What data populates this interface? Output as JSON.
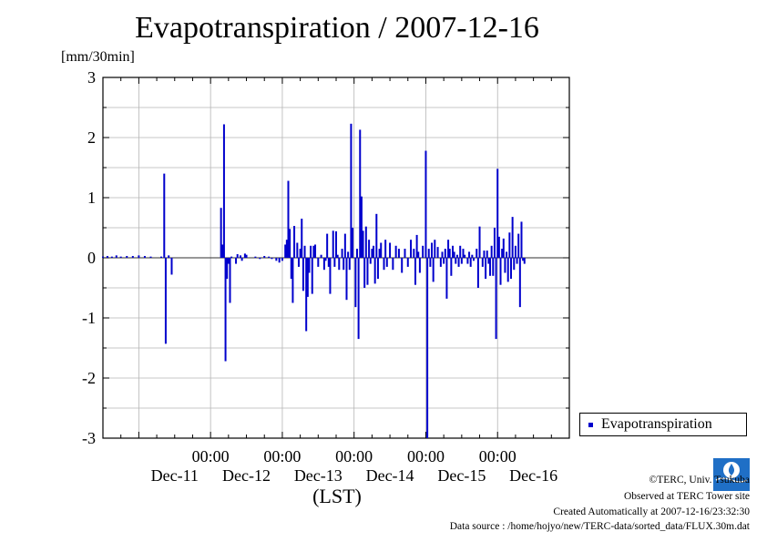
{
  "title": "Evapotranspiration / 2007-12-16",
  "unit_label": "[mm/30min]",
  "xlabel": "(LST)",
  "legend": {
    "label": "Evapotranspiration",
    "position": "right, below plot",
    "color": "#0000cc"
  },
  "credits": {
    "copyright": "©TERC, Univ. Tsukuba",
    "observed": "Observed at TERC Tower site",
    "created": "Created Automatically at 2007-12-16/23:32:30",
    "source": "Data source : /home/hojyo/new/TERC-data/sorted_data/FLUX.30m.dat"
  },
  "logo": {
    "icon": "terc-logo-icon",
    "text": "TERC"
  },
  "chart_data": {
    "type": "bar",
    "ylim": [
      -3,
      3
    ],
    "yticks": [
      "3",
      "2",
      "1",
      "0",
      "-1",
      "-2",
      "-3"
    ],
    "xlim_days": [
      "Dec-10 12:00",
      "Dec-16 24:00"
    ],
    "x_time_ticks": [
      "00:00",
      "00:00",
      "00:00",
      "00:00",
      "00:00"
    ],
    "x_day_labels": [
      "Dec-11",
      "Dec-12",
      "Dec-13",
      "Dec-14",
      "Dec-15",
      "Dec-16"
    ],
    "grid": true,
    "series": [
      {
        "name": "Evapotranspiration",
        "color": "#0000cc",
        "points": [
          [
            "12-10 12:00",
            0.02
          ],
          [
            "12-10 13:30",
            0.03
          ],
          [
            "12-10 15:00",
            0.02
          ],
          [
            "12-10 16:30",
            0.04
          ],
          [
            "12-10 18:00",
            0.02
          ],
          [
            "12-10 20:00",
            0.03
          ],
          [
            "12-10 22:00",
            0.03
          ],
          [
            "12-11 00:00",
            0.04
          ],
          [
            "12-11 02:00",
            0.03
          ],
          [
            "12-11 04:00",
            0.02
          ],
          [
            "12-11 07:30",
            0.02
          ],
          [
            "12-11 08:30",
            1.4
          ],
          [
            "12-11 09:00",
            -1.43
          ],
          [
            "12-11 10:00",
            0.04
          ],
          [
            "12-11 11:00",
            -0.28
          ],
          [
            "12-12 03:30",
            0.83
          ],
          [
            "12-12 04:00",
            0.22
          ],
          [
            "12-12 04:30",
            2.22
          ],
          [
            "12-12 05:00",
            -1.72
          ],
          [
            "12-12 05:30",
            -0.35
          ],
          [
            "12-12 06:00",
            -0.1
          ],
          [
            "12-12 06:30",
            -0.75
          ],
          [
            "12-12 07:00",
            0.02
          ],
          [
            "12-12 08:30",
            -0.1
          ],
          [
            "12-12 09:00",
            0.06
          ],
          [
            "12-12 10:00",
            0.04
          ],
          [
            "12-12 10:30",
            -0.05
          ],
          [
            "12-12 11:30",
            0.07
          ],
          [
            "12-12 12:00",
            0.05
          ],
          [
            "12-12 15:00",
            0.02
          ],
          [
            "12-12 16:30",
            -0.02
          ],
          [
            "12-12 18:00",
            0.03
          ],
          [
            "12-12 19:30",
            0.02
          ],
          [
            "12-12 20:30",
            -0.02
          ],
          [
            "12-12 22:00",
            -0.05
          ],
          [
            "12-12 23:00",
            -0.08
          ],
          [
            "12-13 00:00",
            -0.05
          ],
          [
            "12-13 01:00",
            0.22
          ],
          [
            "12-13 01:30",
            0.3
          ],
          [
            "12-13 02:00",
            1.28
          ],
          [
            "12-13 02:30",
            0.48
          ],
          [
            "12-13 03:00",
            -0.35
          ],
          [
            "12-13 03:30",
            -0.75
          ],
          [
            "12-13 04:00",
            0.53
          ],
          [
            "12-13 05:00",
            0.25
          ],
          [
            "12-13 05:30",
            -0.15
          ],
          [
            "12-13 06:00",
            0.15
          ],
          [
            "12-13 06:30",
            0.65
          ],
          [
            "12-13 07:00",
            -0.55
          ],
          [
            "12-13 07:30",
            0.2
          ],
          [
            "12-13 08:00",
            -1.22
          ],
          [
            "12-13 08:30",
            -0.65
          ],
          [
            "12-13 09:00",
            -0.25
          ],
          [
            "12-13 09:30",
            0.2
          ],
          [
            "12-13 10:00",
            -0.6
          ],
          [
            "12-13 10:30",
            0.2
          ],
          [
            "12-13 11:00",
            0.22
          ],
          [
            "12-13 12:00",
            -0.15
          ],
          [
            "12-13 13:00",
            0.05
          ],
          [
            "12-13 14:00",
            -0.2
          ],
          [
            "12-13 14:30",
            -0.05
          ],
          [
            "12-13 15:00",
            0.4
          ],
          [
            "12-13 15:30",
            -0.15
          ],
          [
            "12-13 16:00",
            -0.6
          ],
          [
            "12-13 17:00",
            0.45
          ],
          [
            "12-13 17:30",
            -0.15
          ],
          [
            "12-13 18:00",
            0.44
          ],
          [
            "12-13 18:30",
            0.05
          ],
          [
            "12-13 19:00",
            -0.2
          ],
          [
            "12-13 20:00",
            0.15
          ],
          [
            "12-13 20:30",
            -0.2
          ],
          [
            "12-13 21:00",
            0.4
          ],
          [
            "12-13 21:30",
            -0.7
          ],
          [
            "12-13 22:00",
            0.1
          ],
          [
            "12-13 22:30",
            -0.2
          ],
          [
            "12-13 23:00",
            2.23
          ],
          [
            "12-13 23:30",
            0.5
          ],
          [
            "12-14 00:30",
            -0.82
          ],
          [
            "12-14 01:00",
            0.15
          ],
          [
            "12-14 01:30",
            -1.35
          ],
          [
            "12-14 02:00",
            2.13
          ],
          [
            "12-14 02:30",
            1.02
          ],
          [
            "12-14 03:00",
            0.45
          ],
          [
            "12-14 03:30",
            -0.5
          ],
          [
            "12-14 04:00",
            0.52
          ],
          [
            "12-14 04:30",
            -0.45
          ],
          [
            "12-14 05:00",
            0.3
          ],
          [
            "12-14 05:30",
            -0.1
          ],
          [
            "12-14 06:00",
            0.15
          ],
          [
            "12-14 06:30",
            0.2
          ],
          [
            "12-14 07:00",
            -0.43
          ],
          [
            "12-14 07:30",
            0.73
          ],
          [
            "12-14 08:00",
            -0.35
          ],
          [
            "12-14 08:30",
            0.15
          ],
          [
            "12-14 09:00",
            0.25
          ],
          [
            "12-14 10:00",
            -0.2
          ],
          [
            "12-14 10:30",
            0.3
          ],
          [
            "12-14 11:00",
            -0.15
          ],
          [
            "12-14 12:00",
            0.25
          ],
          [
            "12-14 13:00",
            -0.2
          ],
          [
            "12-14 14:00",
            0.2
          ],
          [
            "12-14 15:00",
            0.15
          ],
          [
            "12-14 16:00",
            -0.25
          ],
          [
            "12-14 17:00",
            0.15
          ],
          [
            "12-14 18:00",
            -0.15
          ],
          [
            "12-14 19:00",
            0.3
          ],
          [
            "12-14 20:00",
            0.15
          ],
          [
            "12-14 20:30",
            -0.45
          ],
          [
            "12-14 21:00",
            0.38
          ],
          [
            "12-14 21:30",
            0.1
          ],
          [
            "12-14 22:00",
            -0.25
          ],
          [
            "12-14 23:00",
            0.2
          ],
          [
            "12-15 00:00",
            1.78
          ],
          [
            "12-15 00:30",
            -3.0
          ],
          [
            "12-15 01:00",
            0.15
          ],
          [
            "12-15 01:30",
            -0.15
          ],
          [
            "12-15 02:00",
            0.25
          ],
          [
            "12-15 02:30",
            -0.4
          ],
          [
            "12-15 03:00",
            0.3
          ],
          [
            "12-15 04:00",
            0.18
          ],
          [
            "12-15 05:00",
            -0.15
          ],
          [
            "12-15 05:30",
            0.1
          ],
          [
            "12-15 06:00",
            -0.1
          ],
          [
            "12-15 06:30",
            0.15
          ],
          [
            "12-15 07:00",
            -0.68
          ],
          [
            "12-15 07:30",
            0.3
          ],
          [
            "12-15 08:00",
            0.15
          ],
          [
            "12-15 08:30",
            -0.3
          ],
          [
            "12-15 09:00",
            0.2
          ],
          [
            "12-15 09:30",
            0.1
          ],
          [
            "12-15 10:00",
            -0.1
          ],
          [
            "12-15 10:30",
            0.05
          ],
          [
            "12-15 11:00",
            -0.15
          ],
          [
            "12-15 11:30",
            0.2
          ],
          [
            "12-15 12:00",
            -0.1
          ],
          [
            "12-15 12:30",
            0.15
          ],
          [
            "12-15 13:00",
            0.05
          ],
          [
            "12-15 14:00",
            -0.1
          ],
          [
            "12-15 14:30",
            0.1
          ],
          [
            "12-15 15:00",
            -0.15
          ],
          [
            "12-15 15:30",
            0.05
          ],
          [
            "12-15 16:00",
            -0.05
          ],
          [
            "12-15 17:00",
            0.15
          ],
          [
            "12-15 17:30",
            -0.5
          ],
          [
            "12-15 18:00",
            0.52
          ],
          [
            "12-15 19:00",
            -0.15
          ],
          [
            "12-15 19:30",
            0.12
          ],
          [
            "12-15 20:00",
            -0.35
          ],
          [
            "12-15 20:30",
            0.12
          ],
          [
            "12-15 21:00",
            -0.1
          ],
          [
            "12-15 21:30",
            -0.3
          ],
          [
            "12-15 22:00",
            0.2
          ],
          [
            "12-15 22:30",
            -0.3
          ],
          [
            "12-15 23:00",
            0.5
          ],
          [
            "12-15 23:30",
            -1.35
          ],
          [
            "12-16 00:00",
            1.48
          ],
          [
            "12-16 00:30",
            0.35
          ],
          [
            "12-16 01:00",
            -0.45
          ],
          [
            "12-16 01:30",
            0.15
          ],
          [
            "12-16 02:00",
            0.32
          ],
          [
            "12-16 02:30",
            -0.25
          ],
          [
            "12-16 03:00",
            0.1
          ],
          [
            "12-16 03:30",
            -0.4
          ],
          [
            "12-16 04:00",
            0.42
          ],
          [
            "12-16 04:30",
            -0.35
          ],
          [
            "12-16 05:00",
            0.68
          ],
          [
            "12-16 05:30",
            -0.2
          ],
          [
            "12-16 06:00",
            0.2
          ],
          [
            "12-16 06:30",
            -0.1
          ],
          [
            "12-16 07:00",
            0.4
          ],
          [
            "12-16 07:30",
            -0.82
          ],
          [
            "12-16 08:00",
            0.6
          ],
          [
            "12-16 08:30",
            -0.05
          ],
          [
            "12-16 09:00",
            -0.1
          ]
        ]
      }
    ]
  }
}
